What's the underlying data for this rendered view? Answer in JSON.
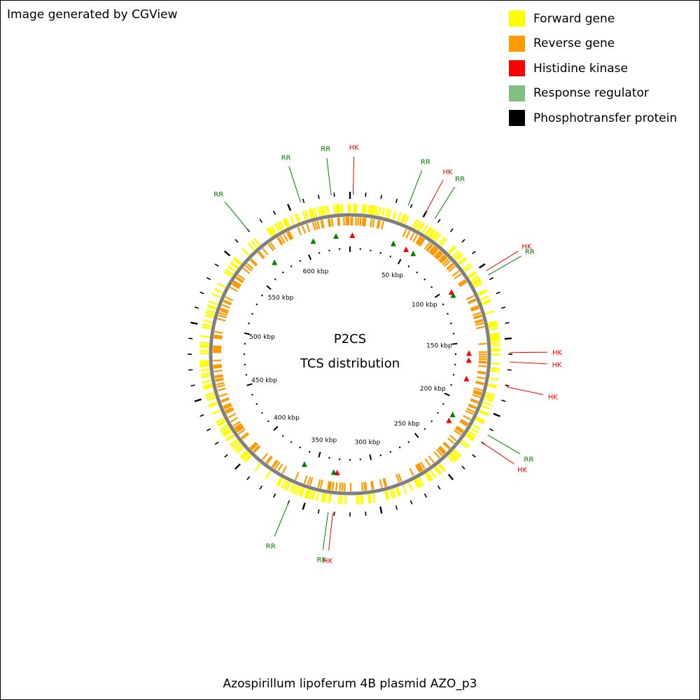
{
  "credit": "Image generated by CGView",
  "title_lines": [
    "P2CS",
    "TCS distribution"
  ],
  "footer": "Azospirillum lipoferum 4B plasmid AZO_p3",
  "colors": {
    "forward": "#ffff00",
    "reverse": "#ff9900",
    "hk": "#ff0000",
    "rr": "#008000",
    "rr_swatch": "#80c080",
    "phospho": "#000000",
    "backbone": "#808080"
  },
  "legend": [
    {
      "label": "Forward gene",
      "color": "#ffff00"
    },
    {
      "label": "Reverse gene",
      "color": "#ff9900"
    },
    {
      "label": "Histidine kinase",
      "color": "#ff0000"
    },
    {
      "label": "Response regulator",
      "color": "#80c080"
    },
    {
      "label": "Phosphotransfer protein",
      "color": "#000000"
    }
  ],
  "map": {
    "total_kbp": 640,
    "tick_labels": [
      {
        "kbp": 50,
        "label": "50 kbp"
      },
      {
        "kbp": 100,
        "label": "100 kbp"
      },
      {
        "kbp": 150,
        "label": "150 kbp"
      },
      {
        "kbp": 200,
        "label": "200 kbp"
      },
      {
        "kbp": 250,
        "label": "250 kbp"
      },
      {
        "kbp": 300,
        "label": "300 kbp"
      },
      {
        "kbp": 350,
        "label": "350 kbp"
      },
      {
        "kbp": 400,
        "label": "400 kbp"
      },
      {
        "kbp": 450,
        "label": "450 kbp"
      },
      {
        "kbp": 500,
        "label": "500 kbp"
      },
      {
        "kbp": 550,
        "label": "550 kbp"
      },
      {
        "kbp": 600,
        "label": "600 kbp"
      }
    ],
    "features": [
      {
        "type": "RR",
        "kbp": 608,
        "label": "RR"
      },
      {
        "type": "RR",
        "kbp": 628,
        "label": "RR"
      },
      {
        "type": "HK",
        "kbp": 2,
        "label": "HK"
      },
      {
        "type": "RR",
        "kbp": 38,
        "label": "RR"
      },
      {
        "type": "HK",
        "kbp": 50,
        "label": "HK"
      },
      {
        "type": "RR",
        "kbp": 57,
        "label": "RR"
      },
      {
        "type": "HK",
        "kbp": 104,
        "label": "HK"
      },
      {
        "type": "RR",
        "kbp": 107,
        "label": "RR"
      },
      {
        "type": "HK",
        "kbp": 159,
        "label": "HK"
      },
      {
        "type": "HK",
        "kbp": 165,
        "label": "HK"
      },
      {
        "type": "HK",
        "kbp": 181,
        "label": "HK"
      },
      {
        "type": "RR",
        "kbp": 214,
        "label": "RR"
      },
      {
        "type": "HK",
        "kbp": 220,
        "label": "HK"
      },
      {
        "type": "HK",
        "kbp": 331,
        "label": "HK"
      },
      {
        "type": "RR",
        "kbp": 334,
        "label": "RR"
      },
      {
        "type": "RR",
        "kbp": 360,
        "label": "RR"
      },
      {
        "type": "RR",
        "kbp": 570,
        "label": "RR"
      }
    ]
  }
}
